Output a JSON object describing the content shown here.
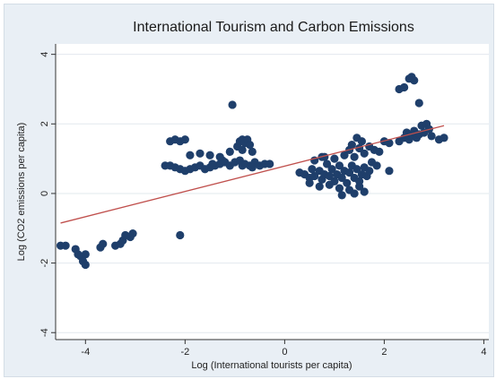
{
  "chart_data": {
    "type": "scatter",
    "title": "International Tourism and Carbon Emissions",
    "xlabel": "Log (International tourists per capita)",
    "ylabel": "Log (CO2 emissions per capita)",
    "xlim": [
      -4.6,
      4.1
    ],
    "ylim": [
      -4.2,
      4.3
    ],
    "xticks": [
      -4,
      -2,
      0,
      2,
      4
    ],
    "yticks": [
      -4,
      -2,
      0,
      2,
      4
    ],
    "xtick_labels": [
      "-4",
      "-2",
      "0",
      "2",
      "4"
    ],
    "ytick_labels": [
      "-4",
      "-2",
      "0",
      "2",
      "4"
    ],
    "grid": "horizontal",
    "legend": "none",
    "colors": {
      "points": "#1f3f6b",
      "fit_line": "#c0504d",
      "plot_bg": "#ffffff",
      "frame_bg": "#e9eff5",
      "grid": "#e2e8ee"
    },
    "series": [
      {
        "type": "scatter",
        "points": [
          [
            -4.5,
            -1.5
          ],
          [
            -4.4,
            -1.5
          ],
          [
            -4.2,
            -1.6
          ],
          [
            -4.15,
            -1.75
          ],
          [
            -4.1,
            -1.8
          ],
          [
            -4.05,
            -1.95
          ],
          [
            -4.0,
            -2.05
          ],
          [
            -4.0,
            -1.75
          ],
          [
            -3.7,
            -1.55
          ],
          [
            -3.65,
            -1.45
          ],
          [
            -3.4,
            -1.5
          ],
          [
            -3.3,
            -1.45
          ],
          [
            -3.25,
            -1.35
          ],
          [
            -3.1,
            -1.25
          ],
          [
            -3.05,
            -1.15
          ],
          [
            -3.2,
            -1.2
          ],
          [
            -2.1,
            -1.2
          ],
          [
            -2.4,
            0.8
          ],
          [
            -2.3,
            0.8
          ],
          [
            -2.2,
            0.75
          ],
          [
            -2.1,
            0.7
          ],
          [
            -2.0,
            0.65
          ],
          [
            -1.9,
            0.7
          ],
          [
            -1.8,
            0.75
          ],
          [
            -1.7,
            0.8
          ],
          [
            -1.6,
            0.7
          ],
          [
            -1.5,
            0.75
          ],
          [
            -1.4,
            0.8
          ],
          [
            -1.3,
            0.85
          ],
          [
            -1.2,
            0.9
          ],
          [
            -1.1,
            0.8
          ],
          [
            -1.0,
            0.9
          ],
          [
            -0.9,
            0.95
          ],
          [
            -0.8,
            0.85
          ],
          [
            -0.7,
            0.8
          ],
          [
            -0.6,
            0.9
          ],
          [
            -0.5,
            0.8
          ],
          [
            -0.4,
            0.85
          ],
          [
            -0.3,
            0.85
          ],
          [
            -1.45,
            0.85
          ],
          [
            -1.25,
            0.95
          ],
          [
            -0.85,
            0.8
          ],
          [
            -0.65,
            0.75
          ],
          [
            -2.3,
            1.5
          ],
          [
            -2.2,
            1.55
          ],
          [
            -2.1,
            1.5
          ],
          [
            -2.0,
            1.55
          ],
          [
            -1.9,
            1.1
          ],
          [
            -1.7,
            1.15
          ],
          [
            -1.5,
            1.1
          ],
          [
            -1.3,
            1.05
          ],
          [
            -1.1,
            1.2
          ],
          [
            -0.95,
            1.35
          ],
          [
            -0.9,
            1.5
          ],
          [
            -0.85,
            1.55
          ],
          [
            -0.8,
            1.45
          ],
          [
            -0.75,
            1.55
          ],
          [
            -0.7,
            1.4
          ],
          [
            -0.65,
            1.2
          ],
          [
            -0.85,
            1.25
          ],
          [
            -1.05,
            2.55
          ],
          [
            0.3,
            0.6
          ],
          [
            0.4,
            0.55
          ],
          [
            0.5,
            0.45
          ],
          [
            0.55,
            0.7
          ],
          [
            0.6,
            0.5
          ],
          [
            0.7,
            0.65
          ],
          [
            0.75,
            0.4
          ],
          [
            0.8,
            0.55
          ],
          [
            0.85,
            0.85
          ],
          [
            0.9,
            0.5
          ],
          [
            0.95,
            0.7
          ],
          [
            1.0,
            0.35
          ],
          [
            1.05,
            0.55
          ],
          [
            1.1,
            0.8
          ],
          [
            1.15,
            0.45
          ],
          [
            1.2,
            0.65
          ],
          [
            1.25,
            0.3
          ],
          [
            1.3,
            0.6
          ],
          [
            1.35,
            0.8
          ],
          [
            1.4,
            0.45
          ],
          [
            1.45,
            0.7
          ],
          [
            1.5,
            0.35
          ],
          [
            1.55,
            0.55
          ],
          [
            1.6,
            0.75
          ],
          [
            1.65,
            0.5
          ],
          [
            1.7,
            0.65
          ],
          [
            1.75,
            0.9
          ],
          [
            0.5,
            0.3
          ],
          [
            0.7,
            0.2
          ],
          [
            0.9,
            0.25
          ],
          [
            1.1,
            0.15
          ],
          [
            1.3,
            0.1
          ],
          [
            1.5,
            0.2
          ],
          [
            0.6,
            0.95
          ],
          [
            0.8,
            1.05
          ],
          [
            1.0,
            1.0
          ],
          [
            1.2,
            1.1
          ],
          [
            1.3,
            1.25
          ],
          [
            1.4,
            1.05
          ],
          [
            1.35,
            1.4
          ],
          [
            1.45,
            1.6
          ],
          [
            1.5,
            1.3
          ],
          [
            1.55,
            1.5
          ],
          [
            1.6,
            1.15
          ],
          [
            1.7,
            1.35
          ],
          [
            1.8,
            1.25
          ],
          [
            1.9,
            1.2
          ],
          [
            2.0,
            1.5
          ],
          [
            2.1,
            1.45
          ],
          [
            1.4,
            0.0
          ],
          [
            1.6,
            0.05
          ],
          [
            1.15,
            -0.05
          ],
          [
            0.75,
            1.05
          ],
          [
            1.85,
            0.8
          ],
          [
            2.1,
            0.65
          ],
          [
            2.3,
            1.5
          ],
          [
            2.4,
            1.6
          ],
          [
            2.45,
            1.75
          ],
          [
            2.5,
            1.55
          ],
          [
            2.55,
            1.7
          ],
          [
            2.6,
            1.8
          ],
          [
            2.65,
            1.6
          ],
          [
            2.7,
            1.7
          ],
          [
            2.75,
            1.95
          ],
          [
            2.8,
            1.75
          ],
          [
            2.85,
            2.0
          ],
          [
            2.9,
            1.85
          ],
          [
            2.95,
            1.65
          ],
          [
            3.1,
            1.55
          ],
          [
            3.2,
            1.6
          ],
          [
            2.3,
            3.0
          ],
          [
            2.4,
            3.05
          ],
          [
            2.5,
            3.3
          ],
          [
            2.6,
            3.25
          ],
          [
            2.7,
            2.6
          ],
          [
            2.55,
            3.35
          ]
        ]
      },
      {
        "type": "line",
        "points": [
          [
            -4.5,
            -0.85
          ],
          [
            3.2,
            1.95
          ]
        ]
      }
    ]
  }
}
